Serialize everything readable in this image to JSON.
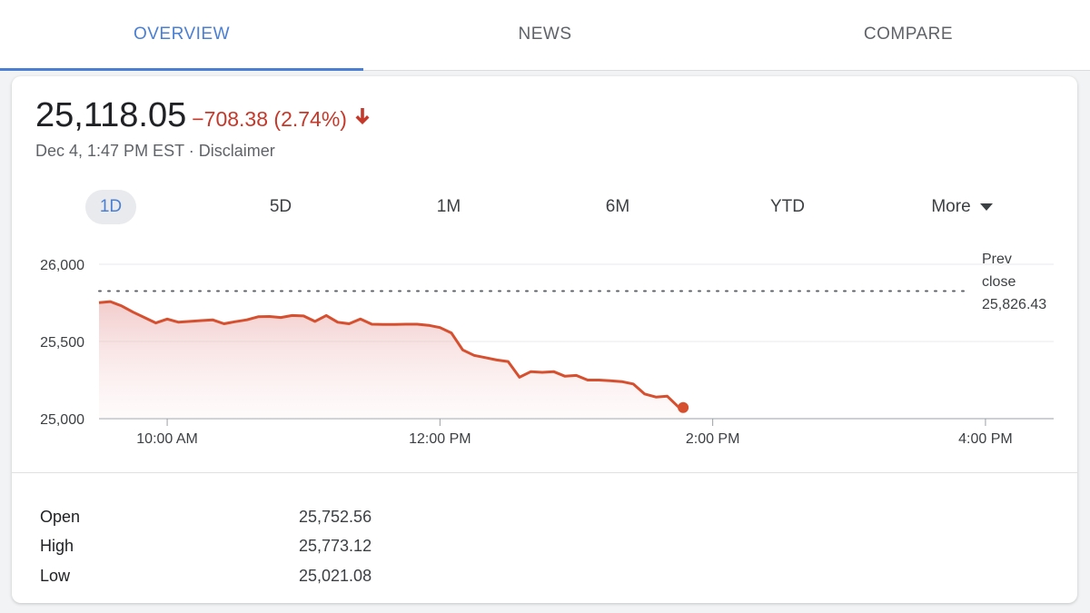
{
  "tabs": [
    {
      "label": "OVERVIEW",
      "active": true
    },
    {
      "label": "NEWS",
      "active": false
    },
    {
      "label": "COMPARE",
      "active": false
    }
  ],
  "quote": {
    "price": "25,118.05",
    "change": "−708.38 (2.74%)",
    "direction": "down",
    "timestamp": "Dec 4, 1:47 PM EST",
    "separator": "·",
    "disclaimer": "Disclaimer"
  },
  "ranges": [
    {
      "label": "1D",
      "active": true
    },
    {
      "label": "5D",
      "active": false
    },
    {
      "label": "1M",
      "active": false
    },
    {
      "label": "6M",
      "active": false
    },
    {
      "label": "YTD",
      "active": false
    },
    {
      "label": "More",
      "active": false,
      "dropdown": true
    }
  ],
  "colors": {
    "accent": "#4a7fd4",
    "negative": "#c5392b",
    "line": "#d6502f"
  },
  "chart_data": {
    "type": "area",
    "x_unit": "time of day",
    "y_ticks": [
      26000,
      25500,
      25000
    ],
    "y_tick_labels": [
      "26,000",
      "25,500",
      "25,000"
    ],
    "x_ticks": [
      "10:00 AM",
      "12:00 PM",
      "2:00 PM",
      "4:00 PM"
    ],
    "x_tick_values": [
      "10:00",
      "12:00",
      "14:00",
      "16:00"
    ],
    "xlim": [
      "09:30",
      "16:30"
    ],
    "ylim": [
      25000,
      26000
    ],
    "prev_close": {
      "label_lines": [
        "Prev",
        "close"
      ],
      "value_label": "25,826.43",
      "value": 25826.43
    },
    "series": [
      {
        "x": [
          "09:30",
          "09:35",
          "09:40",
          "09:45",
          "09:50",
          "09:55",
          "10:00",
          "10:05",
          "10:10",
          "10:15",
          "10:20",
          "10:25",
          "10:30",
          "10:35",
          "10:40",
          "10:45",
          "10:50",
          "10:55",
          "11:00",
          "11:05",
          "11:10",
          "11:15",
          "11:20",
          "11:25",
          "11:30",
          "11:35",
          "11:40",
          "11:45",
          "11:50",
          "11:55",
          "12:00",
          "12:05",
          "12:10",
          "12:15",
          "12:20",
          "12:25",
          "12:30",
          "12:35",
          "12:40",
          "12:45",
          "12:50",
          "12:55",
          "13:00",
          "13:05",
          "13:10",
          "13:15",
          "13:20",
          "13:25",
          "13:30",
          "13:35",
          "13:40",
          "13:45",
          "13:47"
        ],
        "y": [
          25752,
          25758,
          25730,
          25690,
          25655,
          25620,
          25645,
          25625,
          25630,
          25635,
          25640,
          25615,
          25628,
          25640,
          25660,
          25662,
          25655,
          25668,
          25665,
          25630,
          25668,
          25625,
          25615,
          25645,
          25612,
          25610,
          25610,
          25612,
          25612,
          25605,
          25590,
          25555,
          25445,
          25410,
          25395,
          25380,
          25370,
          25268,
          25305,
          25300,
          25305,
          25275,
          25280,
          25250,
          25250,
          25245,
          25240,
          25225,
          25160,
          25140,
          25145,
          25075,
          25072
        ]
      }
    ],
    "last_point": {
      "x": "13:47",
      "y": 25072
    }
  },
  "stats": [
    {
      "label": "Open",
      "value": "25,752.56"
    },
    {
      "label": "High",
      "value": "25,773.12"
    },
    {
      "label": "Low",
      "value": "25,021.08"
    }
  ]
}
